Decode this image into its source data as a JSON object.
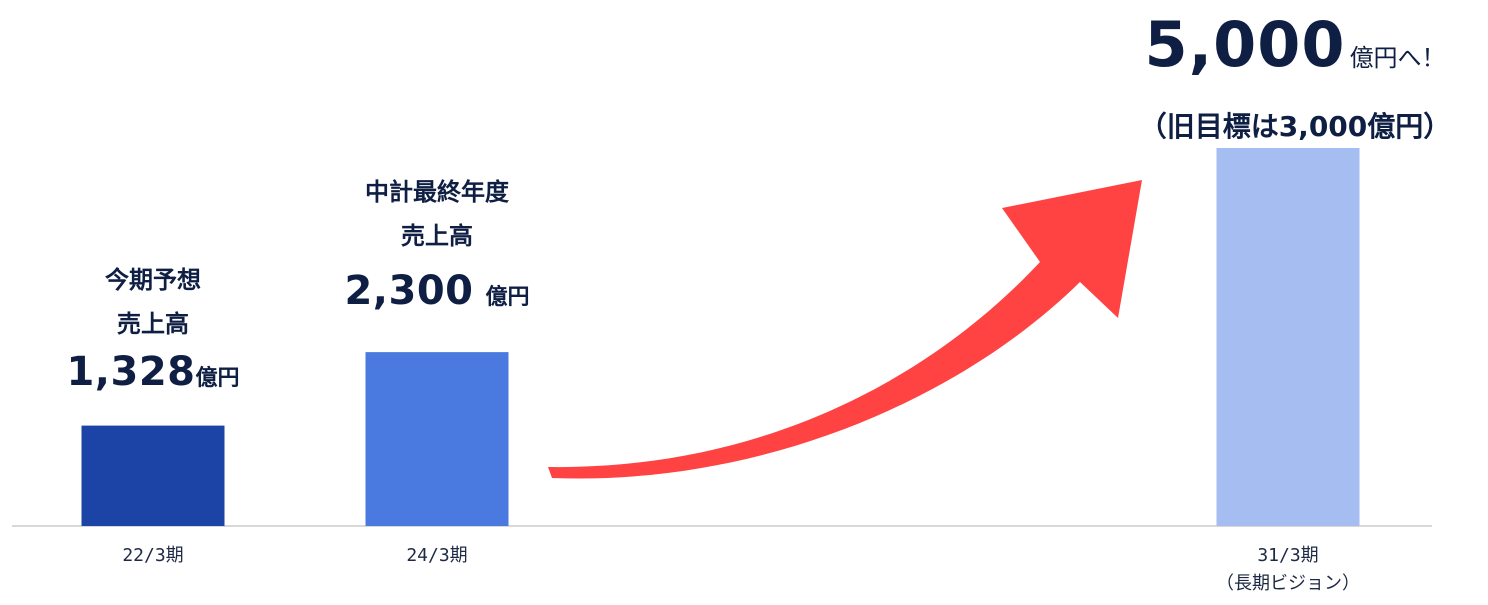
{
  "chart_data": {
    "type": "bar",
    "categories": [
      "22/3期",
      "24/3期",
      "31/3期"
    ],
    "category_sublabels": [
      "",
      "",
      "（長期ビジョン）"
    ],
    "values": [
      1328,
      2300,
      5000
    ],
    "unit": "億円",
    "colors": [
      "#1b44a6",
      "#4a7ae0",
      "#a6bdf2"
    ],
    "ylim": [
      0,
      5000
    ],
    "grid": false,
    "arrow_color": "#ff4343",
    "axis_color": "#cccccc",
    "annotations": {
      "bar0": {
        "line1": "今期予想",
        "line2": "売上高",
        "value": "1,328",
        "unit": "億円"
      },
      "bar1": {
        "line1": "中計最終年度",
        "line2": "売上高",
        "value": "2,300",
        "unit": "億円"
      },
      "bar2": {
        "value": "5,000",
        "unit": "億円へ！",
        "note": "（旧目標は3,000億円）"
      }
    }
  }
}
